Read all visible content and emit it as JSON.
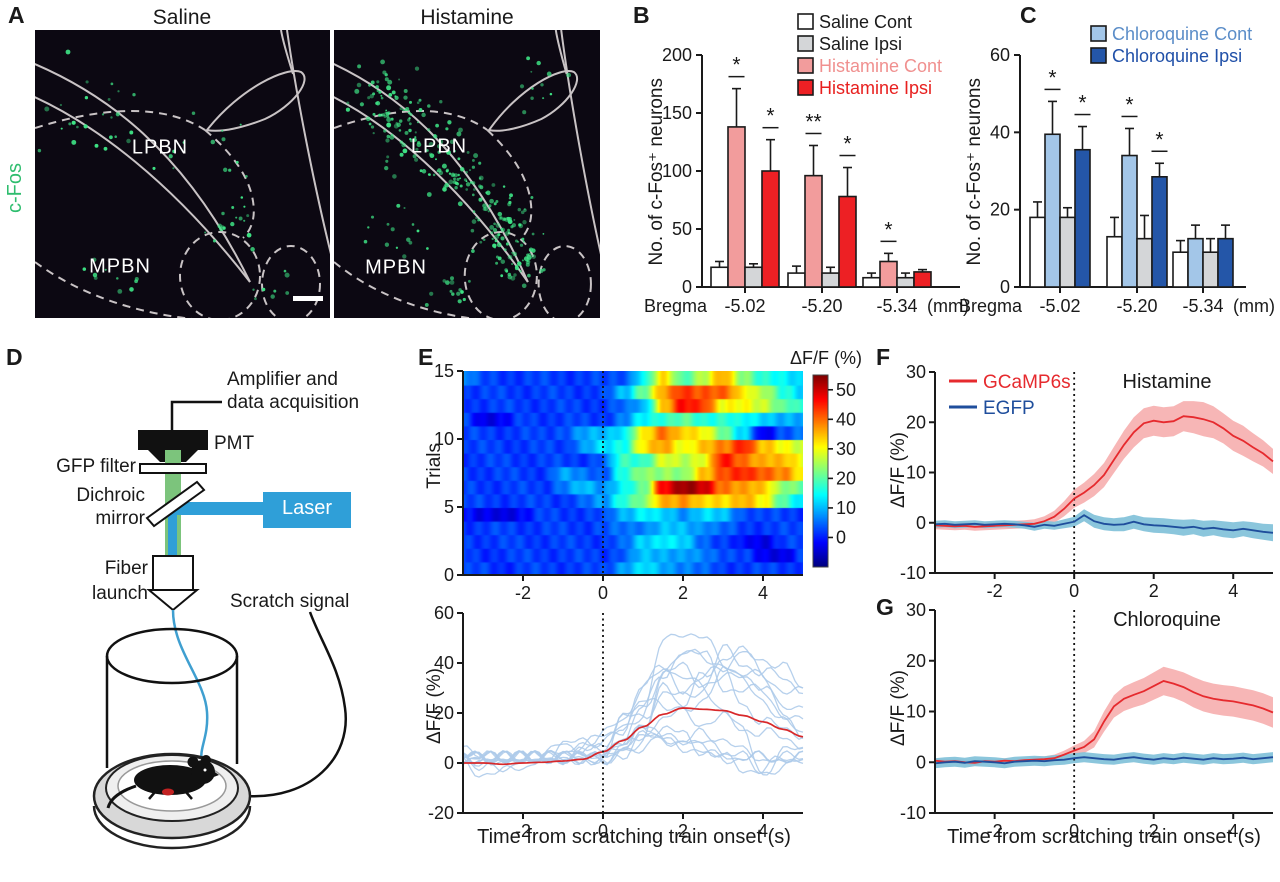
{
  "colors": {
    "black": "#1a1a1a",
    "background": "#ffffff",
    "saline_cont": "#ffffff",
    "saline_ipsi": "#d4d6d8",
    "histamine_cont": "#f29c9c",
    "histamine_ipsi": "#ed2024",
    "chloroquine_cont": "#a3c6e8",
    "chloroquine_ipsi": "#2456a8",
    "gcamp_line": "#e62a2e",
    "gcamp_band": "#f7b2b2",
    "egfp_line": "#1f4e9c",
    "egfp_band": "#85c3da",
    "trace_blue": "#aecbea",
    "trace_mean": "#d8282a",
    "cfos_green": "#2ebd6e",
    "dot_green": "#3ee385",
    "outline_gray": "#c9c3c5",
    "micro_bg": "#0c0812",
    "laser_blue": "#2f9fd8",
    "beam_green": "#7cc47c"
  },
  "panel_a": {
    "letter": "A",
    "stain_label": "c-Fos",
    "images": [
      {
        "title": "Saline",
        "labels": {
          "lpbn": "LPBN",
          "mpbn": "MPBN"
        },
        "has_scale_bar": true,
        "dot_density": "sparse"
      },
      {
        "title": "Histamine",
        "labels": {
          "lpbn": "LPBN",
          "mpbn": "MPBN"
        },
        "has_scale_bar": false,
        "dot_density": "dense"
      }
    ]
  },
  "panel_d": {
    "letter": "D",
    "labels": {
      "amplifier_line1": "Amplifier and",
      "amplifier_line2": "data acquisition",
      "pmt": "PMT",
      "gfp_filter": "GFP filter",
      "dichroic_line1": "Dichroic",
      "dichroic_line2": "mirror",
      "laser": "Laser",
      "fiber_line1": "Fiber",
      "fiber_line2": "launch",
      "scratch": "Scratch signal"
    }
  },
  "panel_letters": {
    "b": "B",
    "c": "C",
    "e": "E",
    "f": "F",
    "g": "G"
  },
  "chart_data": [
    {
      "id": "B",
      "type": "bar",
      "ylabel": "No. of c-Fos⁺ neurons",
      "x_prefix": "Bregma",
      "x_suffix": "(mm)",
      "categories": [
        "-5.02",
        "-5.20",
        "-5.34"
      ],
      "yticks": [
        0,
        50,
        100,
        150,
        200
      ],
      "ylim": [
        0,
        200
      ],
      "series": [
        {
          "name": "Saline Cont",
          "fill": "#ffffff",
          "text_color": "#1a1a1a",
          "values": [
            17,
            12,
            8
          ],
          "errors": [
            5,
            6,
            4
          ]
        },
        {
          "name": "Histamine Cont",
          "fill": "#f29c9c",
          "text_color": "#f0908f",
          "values": [
            138,
            96,
            22
          ],
          "errors": [
            33,
            26,
            7
          ]
        },
        {
          "name": "Saline Ipsi",
          "fill": "#d4d6d8",
          "text_color": "#1a1a1a",
          "values": [
            17,
            12,
            8
          ],
          "errors": [
            3,
            5,
            4
          ]
        },
        {
          "name": "Histamine Ipsi",
          "fill": "#ed2024",
          "text_color": "#e8201f",
          "values": [
            100,
            78,
            13
          ],
          "errors": [
            27,
            25,
            2
          ]
        }
      ],
      "legend_series": [
        0,
        2,
        1,
        3
      ],
      "significance": [
        {
          "category": 0,
          "series": 1,
          "label": "*"
        },
        {
          "category": 0,
          "series": 3,
          "label": "*"
        },
        {
          "category": 1,
          "series": 1,
          "label": "**"
        },
        {
          "category": 1,
          "series": 3,
          "label": "*"
        },
        {
          "category": 2,
          "series": 1,
          "label": "*"
        }
      ]
    },
    {
      "id": "C",
      "type": "bar",
      "ylabel": "No. of c-Fos⁺ neurons",
      "x_prefix": "Bregma",
      "x_suffix": "(mm)",
      "categories": [
        "-5.02",
        "-5.20",
        "-5.34"
      ],
      "yticks": [
        0,
        20,
        40,
        60
      ],
      "ylim": [
        0,
        60
      ],
      "series": [
        {
          "name": "Saline Cont",
          "fill": "#ffffff",
          "text_color": "#1a1a1a",
          "values": [
            18,
            13,
            9
          ],
          "errors": [
            4,
            5,
            3
          ]
        },
        {
          "name": "Chloroquine Cont",
          "fill": "#a3c6e8",
          "text_color": "#5b8dc8",
          "values": [
            39.5,
            34,
            12.5
          ],
          "errors": [
            8.5,
            7,
            3.5
          ]
        },
        {
          "name": "Saline Ipsi",
          "fill": "#d4d6d8",
          "text_color": "#1a1a1a",
          "values": [
            18,
            12.5,
            9
          ],
          "errors": [
            2.5,
            6,
            3.5
          ]
        },
        {
          "name": "Chloroquine Ipsi",
          "fill": "#2456a8",
          "text_color": "#2050a8",
          "values": [
            35.5,
            28.5,
            12.5
          ],
          "errors": [
            6,
            3.5,
            3.5
          ]
        }
      ],
      "legend_series": [
        1,
        3
      ],
      "significance": [
        {
          "category": 0,
          "series": 1,
          "label": "*"
        },
        {
          "category": 0,
          "series": 3,
          "label": "*"
        },
        {
          "category": 1,
          "series": 1,
          "label": "*"
        },
        {
          "category": 1,
          "series": 3,
          "label": "*"
        }
      ]
    },
    {
      "id": "E_heatmap",
      "type": "heatmap",
      "ylabel": "Trials",
      "colorbar_label": "ΔF/F (%)",
      "x_start": -3.5,
      "x_step": 0.5,
      "xlim": [
        -3.5,
        5
      ],
      "xticks": [
        -2,
        0,
        2,
        4
      ],
      "yticks": [
        0,
        5,
        10,
        15
      ],
      "colorbar_ticks": [
        0,
        10,
        20,
        30,
        40,
        50
      ],
      "vmin": -10,
      "vmax": 55,
      "event_line_x": 0,
      "trials": [
        [
          2,
          2,
          1,
          2,
          2,
          2,
          2,
          2,
          9,
          12,
          9,
          7,
          4,
          2,
          2,
          2,
          2,
          2
        ],
        [
          2,
          1,
          2,
          2,
          2,
          2,
          2,
          2,
          4,
          10,
          10,
          8,
          6,
          4,
          2,
          -3,
          -3,
          2
        ],
        [
          2,
          2,
          2,
          2,
          2,
          2,
          2,
          2,
          4,
          12,
          14,
          11,
          5,
          2,
          -2,
          -3,
          2,
          2
        ],
        [
          2,
          2,
          2,
          2,
          2,
          2,
          2,
          3,
          5,
          7,
          10,
          10,
          8,
          4,
          2,
          2,
          2,
          2
        ],
        [
          0,
          -4,
          -4,
          -1,
          2,
          2,
          2,
          2,
          10,
          14,
          11,
          8,
          12,
          10,
          4,
          2,
          2,
          2
        ],
        [
          2,
          2,
          2,
          2,
          2,
          2,
          4,
          8,
          18,
          22,
          36,
          38,
          32,
          33,
          36,
          30,
          20,
          12
        ],
        [
          2,
          2,
          2,
          2,
          2,
          6,
          10,
          8,
          14,
          20,
          48,
          53,
          50,
          40,
          36,
          34,
          24,
          20
        ],
        [
          2,
          2,
          2,
          2,
          2,
          8,
          6,
          4,
          16,
          24,
          24,
          22,
          35,
          42,
          44,
          42,
          38,
          30
        ],
        [
          2,
          2,
          2,
          2,
          2,
          2,
          2,
          4,
          18,
          18,
          28,
          26,
          30,
          45,
          40,
          36,
          34,
          30
        ],
        [
          2,
          2,
          2,
          2,
          2,
          2,
          8,
          12,
          16,
          32,
          36,
          30,
          34,
          38,
          46,
          34,
          30,
          28
        ],
        [
          2,
          2,
          2,
          2,
          2,
          4,
          8,
          10,
          14,
          30,
          40,
          34,
          30,
          22,
          12,
          -4,
          4,
          6
        ],
        [
          2,
          -3,
          -2,
          2,
          2,
          2,
          2,
          2,
          6,
          14,
          18,
          20,
          16,
          18,
          14,
          12,
          10,
          8
        ],
        [
          2,
          2,
          2,
          2,
          2,
          2,
          2,
          2,
          4,
          10,
          34,
          46,
          44,
          30,
          30,
          28,
          20,
          16
        ],
        [
          2,
          2,
          2,
          2,
          2,
          2,
          2,
          2,
          10,
          22,
          36,
          44,
          42,
          40,
          32,
          26,
          16,
          12
        ],
        [
          8,
          2,
          2,
          2,
          2,
          2,
          2,
          2,
          4,
          14,
          32,
          20,
          26,
          36,
          24,
          16,
          14,
          12
        ]
      ]
    },
    {
      "id": "E_traces",
      "type": "line",
      "ylabel": "ΔF/F (%)",
      "xlabel": "Time from scratching train onset (s)",
      "yticks": [
        -20,
        0,
        20,
        40,
        60
      ],
      "ylim": [
        -20,
        60
      ],
      "xticks": [
        -2,
        0,
        2,
        4
      ],
      "xlim": [
        -3.5,
        5
      ],
      "event_line_x": 0,
      "trace_color": "#aecbea",
      "individual_trials_from": "E_heatmap",
      "mean": {
        "name": "mean",
        "color": "#d8282a",
        "x_start": -3.5,
        "x_step": 0.5,
        "values": [
          0,
          0,
          -0.5,
          0,
          0.3,
          0.8,
          1.5,
          4.5,
          9,
          14.5,
          19.5,
          22,
          21.5,
          21,
          19,
          16.5,
          13.5,
          10.5
        ]
      }
    },
    {
      "id": "F",
      "type": "line",
      "title": "Histamine",
      "ylabel": "ΔF/F (%)",
      "yticks": [
        -10,
        0,
        10,
        20,
        30
      ],
      "ylim": [
        -10,
        30
      ],
      "xticks": [
        -2,
        0,
        2,
        4
      ],
      "xlim": [
        -3.5,
        5
      ],
      "event_line_x": 0,
      "x_start": -3.5,
      "x_step": 0.25,
      "legend": true,
      "series": [
        {
          "name": "GCaMP6s",
          "color": "#e62a2e",
          "band_color": "#f7b2b2",
          "values": [
            -0.5,
            -0.6,
            -0.7,
            -0.6,
            -0.8,
            -0.7,
            -0.6,
            -0.5,
            -0.4,
            -0.3,
            -0.2,
            0.3,
            1.2,
            2.8,
            4.8,
            6.0,
            7.5,
            9.5,
            12.5,
            15.5,
            18.0,
            19.8,
            20.3,
            20.0,
            20.2,
            21.2,
            21.0,
            20.6,
            20.0,
            18.8,
            17.3,
            16.3,
            15.0,
            13.8,
            12.2
          ],
          "band": [
            0.8,
            0.8,
            0.8,
            0.8,
            0.8,
            0.8,
            0.8,
            0.8,
            0.8,
            0.8,
            0.9,
            1.0,
            1.2,
            1.5,
            1.8,
            2.0,
            2.2,
            2.4,
            2.6,
            2.8,
            3.0,
            3.0,
            3.0,
            3.0,
            3.0,
            3.0,
            3.2,
            3.4,
            3.2,
            3.0,
            3.0,
            3.0,
            2.8,
            2.6,
            2.5
          ]
        },
        {
          "name": "EGFP",
          "color": "#1f4e9c",
          "band_color": "#85c3da",
          "values": [
            -0.3,
            -0.2,
            -0.4,
            -0.3,
            -0.2,
            -0.4,
            -0.3,
            -0.2,
            -0.3,
            -0.5,
            -0.8,
            -0.4,
            -0.6,
            -0.2,
            0.2,
            1.5,
            0.3,
            -0.2,
            -0.4,
            -0.3,
            0.2,
            -0.3,
            -0.5,
            -0.6,
            -0.8,
            -1.0,
            -0.8,
            -1.2,
            -1.0,
            -1.3,
            -1.5,
            -1.2,
            -1.5,
            -1.8,
            -2.0
          ],
          "band": [
            0.7,
            0.7,
            0.7,
            0.7,
            0.7,
            0.7,
            0.7,
            0.7,
            0.7,
            0.7,
            0.8,
            0.8,
            0.8,
            0.9,
            1.0,
            1.2,
            1.3,
            1.3,
            1.3,
            1.4,
            1.4,
            1.4,
            1.5,
            1.5,
            1.5,
            1.6,
            1.5,
            1.6,
            1.5,
            1.6,
            1.6,
            1.5,
            1.6,
            1.6,
            1.7
          ]
        }
      ]
    },
    {
      "id": "G",
      "type": "line",
      "title": "Chloroquine",
      "ylabel": "ΔF/F (%)",
      "xlabel": "Time from scratching train onset (s)",
      "yticks": [
        -10,
        0,
        10,
        20,
        30
      ],
      "ylim": [
        -10,
        30
      ],
      "xticks": [
        -2,
        0,
        2,
        4
      ],
      "xlim": [
        -3.5,
        5
      ],
      "event_line_x": 0,
      "x_start": -3.5,
      "x_step": 0.25,
      "legend": false,
      "series": [
        {
          "name": "GCaMP6s",
          "color": "#e62a2e",
          "band_color": "#f7b2b2",
          "values": [
            0.3,
            0.1,
            0.2,
            0.0,
            -0.1,
            0.2,
            0.1,
            0.3,
            0.2,
            0.4,
            0.5,
            0.6,
            0.8,
            1.5,
            2.3,
            3.0,
            4.5,
            8.0,
            11.0,
            12.5,
            13.3,
            14.0,
            15.0,
            16.0,
            15.5,
            14.8,
            13.8,
            13.0,
            12.5,
            12.2,
            12.0,
            11.6,
            11.2,
            10.6,
            9.8
          ],
          "band": [
            0.5,
            0.5,
            0.5,
            0.5,
            0.5,
            0.5,
            0.5,
            0.5,
            0.5,
            0.5,
            0.6,
            0.6,
            0.7,
            0.8,
            1.0,
            1.2,
            1.6,
            2.0,
            2.2,
            2.4,
            2.5,
            2.6,
            2.7,
            2.8,
            2.8,
            2.9,
            3.0,
            3.0,
            3.0,
            3.0,
            3.0,
            3.0,
            3.0,
            3.0,
            3.0
          ]
        },
        {
          "name": "EGFP",
          "color": "#1f4e9c",
          "band_color": "#85c3da",
          "values": [
            -0.2,
            0.0,
            0.1,
            -0.1,
            0.2,
            0.1,
            0.0,
            -0.2,
            0.1,
            0.2,
            0.3,
            0.2,
            0.4,
            0.5,
            0.8,
            1.0,
            0.8,
            0.6,
            0.5,
            0.8,
            1.0,
            0.7,
            0.5,
            0.8,
            0.6,
            0.9,
            0.7,
            0.5,
            0.8,
            0.6,
            0.7,
            0.9,
            0.6,
            0.8,
            1.0
          ],
          "band": [
            1,
            1,
            1,
            1,
            1,
            1,
            1,
            1,
            1,
            1,
            1,
            1,
            1,
            1,
            1,
            1,
            1,
            1,
            1,
            1,
            1,
            1,
            1,
            1,
            1,
            1,
            1,
            1,
            1,
            1,
            1,
            1,
            1,
            1,
            1
          ]
        }
      ]
    }
  ]
}
